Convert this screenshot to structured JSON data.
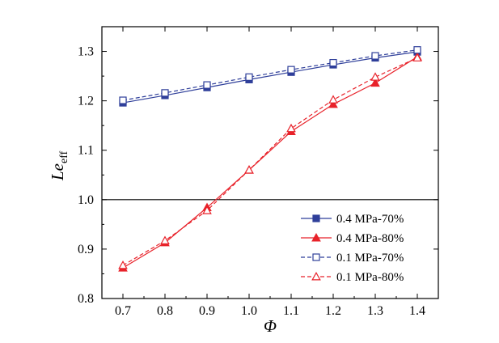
{
  "chart_data": {
    "type": "line",
    "xlabel": "Φ",
    "ylabel": {
      "main": "Le",
      "subscript": "eff"
    },
    "xlim": [
      0.65,
      1.45
    ],
    "ylim": [
      0.8,
      1.35
    ],
    "xticks": [
      "0.7",
      "0.8",
      "0.9",
      "1.0",
      "1.1",
      "1.2",
      "1.3",
      "1.4"
    ],
    "yticks": [
      "0.8",
      "0.9",
      "1.0",
      "1.1",
      "1.2",
      "1.3"
    ],
    "reference_line": {
      "y": 1.0,
      "color": "#000000"
    },
    "grid": false,
    "legend_position": "bottom-right",
    "x": [
      0.7,
      0.8,
      0.9,
      1.0,
      1.1,
      1.2,
      1.3,
      1.4
    ],
    "series": [
      {
        "name": "0.4 MPa-70%",
        "color": "#2f3f9a",
        "line": "solid",
        "marker": "square-filled",
        "values": [
          1.196,
          1.211,
          1.227,
          1.243,
          1.258,
          1.273,
          1.287,
          1.299
        ]
      },
      {
        "name": "0.4 MPa-80%",
        "color": "#e8222a",
        "line": "solid",
        "marker": "triangle-filled",
        "values": [
          0.862,
          0.913,
          0.984,
          1.06,
          1.138,
          1.193,
          1.236,
          1.289
        ]
      },
      {
        "name": "0.1 MPa-70%",
        "color": "#2f3f9a",
        "line": "dashed",
        "marker": "square-open",
        "values": [
          1.201,
          1.216,
          1.232,
          1.248,
          1.263,
          1.277,
          1.291,
          1.303
        ]
      },
      {
        "name": "0.1 MPa-80%",
        "color": "#e8222a",
        "line": "dashed",
        "marker": "triangle-open",
        "values": [
          0.867,
          0.917,
          0.978,
          1.06,
          1.144,
          1.202,
          1.248,
          1.287
        ]
      }
    ]
  }
}
